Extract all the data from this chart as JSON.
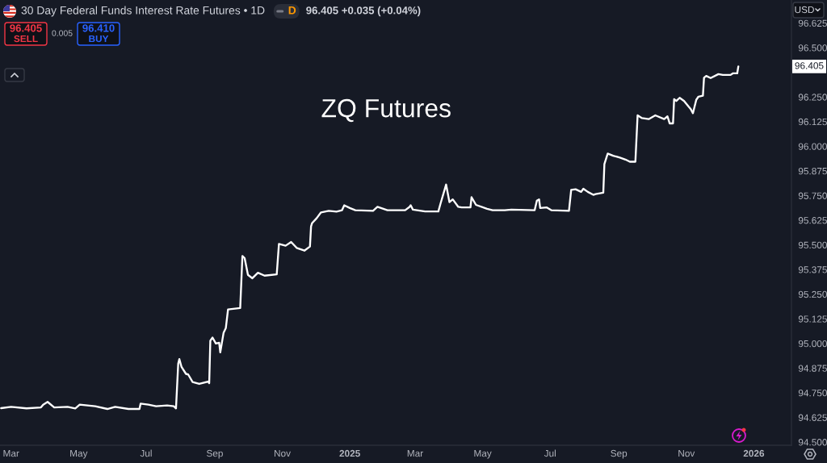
{
  "chart_data": {
    "type": "line",
    "title": "ZQ Futures",
    "subtitle": "30 Day Federal Funds Interest Rate Futures • 1D",
    "x": [
      "2024-02-21",
      "2024-03-01",
      "2024-03-15",
      "2024-03-28",
      "2024-03-30",
      "2024-04-03",
      "2024-04-09",
      "2024-04-21",
      "2024-04-28",
      "2024-05-02",
      "2024-05-16",
      "2024-05-27",
      "2024-06-03",
      "2024-06-15",
      "2024-06-25",
      "2024-06-26",
      "2024-07-03",
      "2024-07-10",
      "2024-07-20",
      "2024-07-26",
      "2024-07-28",
      "2024-07-30",
      "2024-07-31",
      "2024-08-02",
      "2024-08-06",
      "2024-08-08",
      "2024-08-12",
      "2024-08-18",
      "2024-08-26",
      "2024-08-27",
      "2024-08-28",
      "2024-08-30",
      "2024-09-02",
      "2024-09-05",
      "2024-09-06",
      "2024-09-09",
      "2024-09-11",
      "2024-09-13",
      "2024-09-24",
      "2024-09-26",
      "2024-09-28",
      "2024-10-01",
      "2024-10-05",
      "2024-10-10",
      "2024-10-16",
      "2024-10-27",
      "2024-10-29",
      "2024-11-04",
      "2024-11-09",
      "2024-11-14",
      "2024-11-21",
      "2024-11-26",
      "2024-11-27",
      "2024-11-28",
      "2024-12-02",
      "2024-12-06",
      "2024-12-13",
      "2024-12-20",
      "2024-12-25",
      "2024-12-27",
      "2025-01-01",
      "2025-01-06",
      "2025-01-22",
      "2025-01-26",
      "2025-02-04",
      "2025-02-20",
      "2025-02-24",
      "2025-02-25",
      "2025-02-27",
      "2025-03-10",
      "2025-03-22",
      "2025-03-24",
      "2025-03-29",
      "2025-04-01",
      "2025-04-04",
      "2025-04-09",
      "2025-04-12",
      "2025-04-20",
      "2025-04-21",
      "2025-04-25",
      "2025-05-05",
      "2025-05-10",
      "2025-05-21",
      "2025-05-27",
      "2025-06-17",
      "2025-06-19",
      "2025-06-21",
      "2025-06-22",
      "2025-06-28",
      "2025-07-02",
      "2025-07-18",
      "2025-07-20",
      "2025-07-24",
      "2025-07-29",
      "2025-07-31",
      "2025-08-04",
      "2025-08-09",
      "2025-08-11",
      "2025-08-18",
      "2025-08-19",
      "2025-08-22",
      "2025-08-27",
      "2025-09-02",
      "2025-09-07",
      "2025-09-11",
      "2025-09-16",
      "2025-09-18",
      "2025-09-22",
      "2025-09-28",
      "2025-10-04",
      "2025-10-12",
      "2025-10-15",
      "2025-10-17",
      "2025-10-20",
      "2025-10-21",
      "2025-10-23",
      "2025-10-26",
      "2025-10-30",
      "2025-11-03",
      "2025-11-05",
      "2025-11-07",
      "2025-11-10",
      "2025-11-12",
      "2025-11-16",
      "2025-11-17",
      "2025-11-19",
      "2025-11-23",
      "2025-11-30",
      "2025-12-04",
      "2025-12-11",
      "2025-12-13",
      "2025-12-17",
      "2025-12-18"
    ],
    "series": [
      {
        "color": "#ffffff",
        "values": [
          94.672,
          94.679,
          94.671,
          94.676,
          94.69,
          94.704,
          94.676,
          94.679,
          94.671,
          94.69,
          94.682,
          94.668,
          94.679,
          94.668,
          94.668,
          94.695,
          94.69,
          94.682,
          94.686,
          94.682,
          94.671,
          94.898,
          94.921,
          94.881,
          94.846,
          94.843,
          94.805,
          94.795,
          94.807,
          94.799,
          95.014,
          95.03,
          95.0,
          95.004,
          94.955,
          95.055,
          95.078,
          95.173,
          95.18,
          95.444,
          95.433,
          95.348,
          95.331,
          95.359,
          95.344,
          95.351,
          95.505,
          95.496,
          95.515,
          95.485,
          95.471,
          95.492,
          95.594,
          95.611,
          95.635,
          95.665,
          95.673,
          95.669,
          95.676,
          95.701,
          95.687,
          95.676,
          95.673,
          95.693,
          95.676,
          95.676,
          95.693,
          95.701,
          95.679,
          95.67,
          95.67,
          95.71,
          95.806,
          95.717,
          95.731,
          95.693,
          95.69,
          95.69,
          95.742,
          95.703,
          95.683,
          95.676,
          95.676,
          95.679,
          95.676,
          95.724,
          95.731,
          95.687,
          95.69,
          95.676,
          95.673,
          95.779,
          95.782,
          95.769,
          95.785,
          95.769,
          95.754,
          95.758,
          95.765,
          95.91,
          95.963,
          95.952,
          95.943,
          95.933,
          95.922,
          95.922,
          96.157,
          96.143,
          96.138,
          96.157,
          96.138,
          96.152,
          96.116,
          96.116,
          96.239,
          96.23,
          96.246,
          96.23,
          96.202,
          96.189,
          96.168,
          96.236,
          96.252,
          96.257,
          96.348,
          96.357,
          96.346,
          96.366,
          96.362,
          96.362,
          96.37,
          96.37,
          96.405
        ]
      }
    ],
    "xlim": [
      "2024-02-20",
      "2026-02-04"
    ],
    "xticks": [
      {
        "value": "2024-03-01",
        "label": "Mar"
      },
      {
        "value": "2024-05-01",
        "label": "May"
      },
      {
        "value": "2024-07-01",
        "label": "Jul"
      },
      {
        "value": "2024-09-01",
        "label": "Sep"
      },
      {
        "value": "2024-11-01",
        "label": "Nov"
      },
      {
        "value": "2025-01-01",
        "label": "2025"
      },
      {
        "value": "2025-03-01",
        "label": "Mar"
      },
      {
        "value": "2025-05-01",
        "label": "May"
      },
      {
        "value": "2025-07-01",
        "label": "Jul"
      },
      {
        "value": "2025-09-01",
        "label": "Sep"
      },
      {
        "value": "2025-11-01",
        "label": "Nov"
      },
      {
        "value": "2026-01-01",
        "label": "2026"
      }
    ],
    "ylim": [
      94.484,
      96.742
    ],
    "yticks": [
      {
        "value": 94.5,
        "label": "94.500"
      },
      {
        "value": 94.625,
        "label": "94.625"
      },
      {
        "value": 94.75,
        "label": "94.750"
      },
      {
        "value": 94.875,
        "label": "94.875"
      },
      {
        "value": 95.0,
        "label": "95.000"
      },
      {
        "value": 95.125,
        "label": "95.125"
      },
      {
        "value": 95.25,
        "label": "95.250"
      },
      {
        "value": 95.375,
        "label": "95.375"
      },
      {
        "value": 95.5,
        "label": "95.500"
      },
      {
        "value": 95.625,
        "label": "95.625"
      },
      {
        "value": 95.75,
        "label": "95.750"
      },
      {
        "value": 95.875,
        "label": "95.875"
      },
      {
        "value": 96.0,
        "label": "96.000"
      },
      {
        "value": 96.125,
        "label": "96.125"
      },
      {
        "value": 96.25,
        "label": "96.250"
      },
      {
        "value": 96.5,
        "label": "96.500"
      },
      {
        "value": 96.625,
        "label": "96.625"
      }
    ],
    "annotations": [
      "D",
      "96.405 +0.035 (+0.04%)",
      "96.405",
      "SELL",
      "0.005",
      "96.410",
      "BUY",
      "USD",
      "96.405"
    ]
  }
}
